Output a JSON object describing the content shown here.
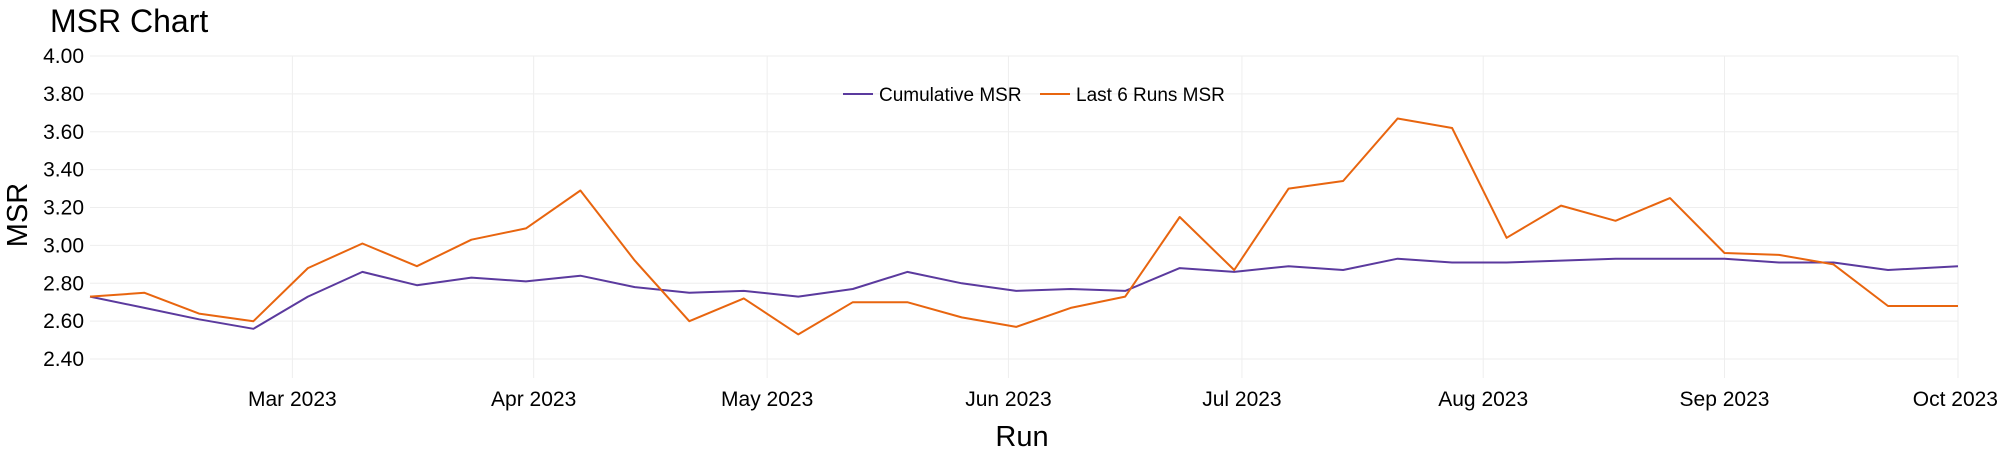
{
  "chart_data": {
    "type": "line",
    "title": "MSR Chart",
    "xlabel": "Run",
    "ylabel": "MSR",
    "ylim": [
      2.3,
      4.0
    ],
    "xlim": [
      "2023-02-03",
      "2023-10-01"
    ],
    "y_ticks": [
      "4.00",
      "3.80",
      "3.60",
      "3.40",
      "3.20",
      "3.00",
      "2.80",
      "2.60",
      "2.40"
    ],
    "x_ticks": [
      {
        "date": "2023-03-01",
        "label": "Mar 2023"
      },
      {
        "date": "2023-04-01",
        "label": "Apr 2023"
      },
      {
        "date": "2023-05-01",
        "label": "May 2023"
      },
      {
        "date": "2023-06-01",
        "label": "Jun 2023"
      },
      {
        "date": "2023-07-01",
        "label": "Jul 2023"
      },
      {
        "date": "2023-08-01",
        "label": "Aug 2023"
      },
      {
        "date": "2023-09-01",
        "label": "Sep 2023"
      },
      {
        "date": "2023-10-01",
        "label": "Oct 2023"
      }
    ],
    "grid": true,
    "legend_position": "top-center",
    "x": [
      "2023-02-03",
      "2023-02-10",
      "2023-02-17",
      "2023-02-24",
      "2023-03-03",
      "2023-03-10",
      "2023-03-17",
      "2023-03-24",
      "2023-03-31",
      "2023-04-07",
      "2023-04-14",
      "2023-04-21",
      "2023-04-28",
      "2023-05-05",
      "2023-05-12",
      "2023-05-19",
      "2023-05-26",
      "2023-06-02",
      "2023-06-09",
      "2023-06-16",
      "2023-06-23",
      "2023-06-30",
      "2023-07-07",
      "2023-07-14",
      "2023-07-21",
      "2023-07-28",
      "2023-08-04",
      "2023-08-11",
      "2023-08-18",
      "2023-08-25",
      "2023-09-01",
      "2023-09-08",
      "2023-09-15",
      "2023-09-22",
      "2023-10-01"
    ],
    "series": [
      {
        "name": "Cumulative MSR",
        "color": "#5b3a9e",
        "values": [
          2.73,
          2.67,
          2.61,
          2.56,
          2.73,
          2.86,
          2.79,
          2.83,
          2.81,
          2.84,
          2.78,
          2.75,
          2.76,
          2.73,
          2.77,
          2.86,
          2.8,
          2.76,
          2.77,
          2.76,
          2.88,
          2.86,
          2.89,
          2.87,
          2.93,
          2.91,
          2.91,
          2.92,
          2.93,
          2.93,
          2.93,
          2.91,
          2.91,
          2.87,
          2.89
        ]
      },
      {
        "name": "Last 6 Runs MSR",
        "color": "#e8650f",
        "values": [
          2.73,
          2.75,
          2.64,
          2.6,
          2.88,
          3.01,
          2.89,
          3.03,
          3.09,
          3.29,
          2.92,
          2.6,
          2.72,
          2.53,
          2.7,
          2.7,
          2.62,
          2.57,
          2.67,
          2.73,
          3.15,
          2.87,
          3.3,
          3.34,
          3.67,
          3.62,
          3.04,
          3.21,
          3.13,
          3.25,
          2.96,
          2.95,
          2.9,
          2.68,
          2.68
        ]
      }
    ]
  }
}
